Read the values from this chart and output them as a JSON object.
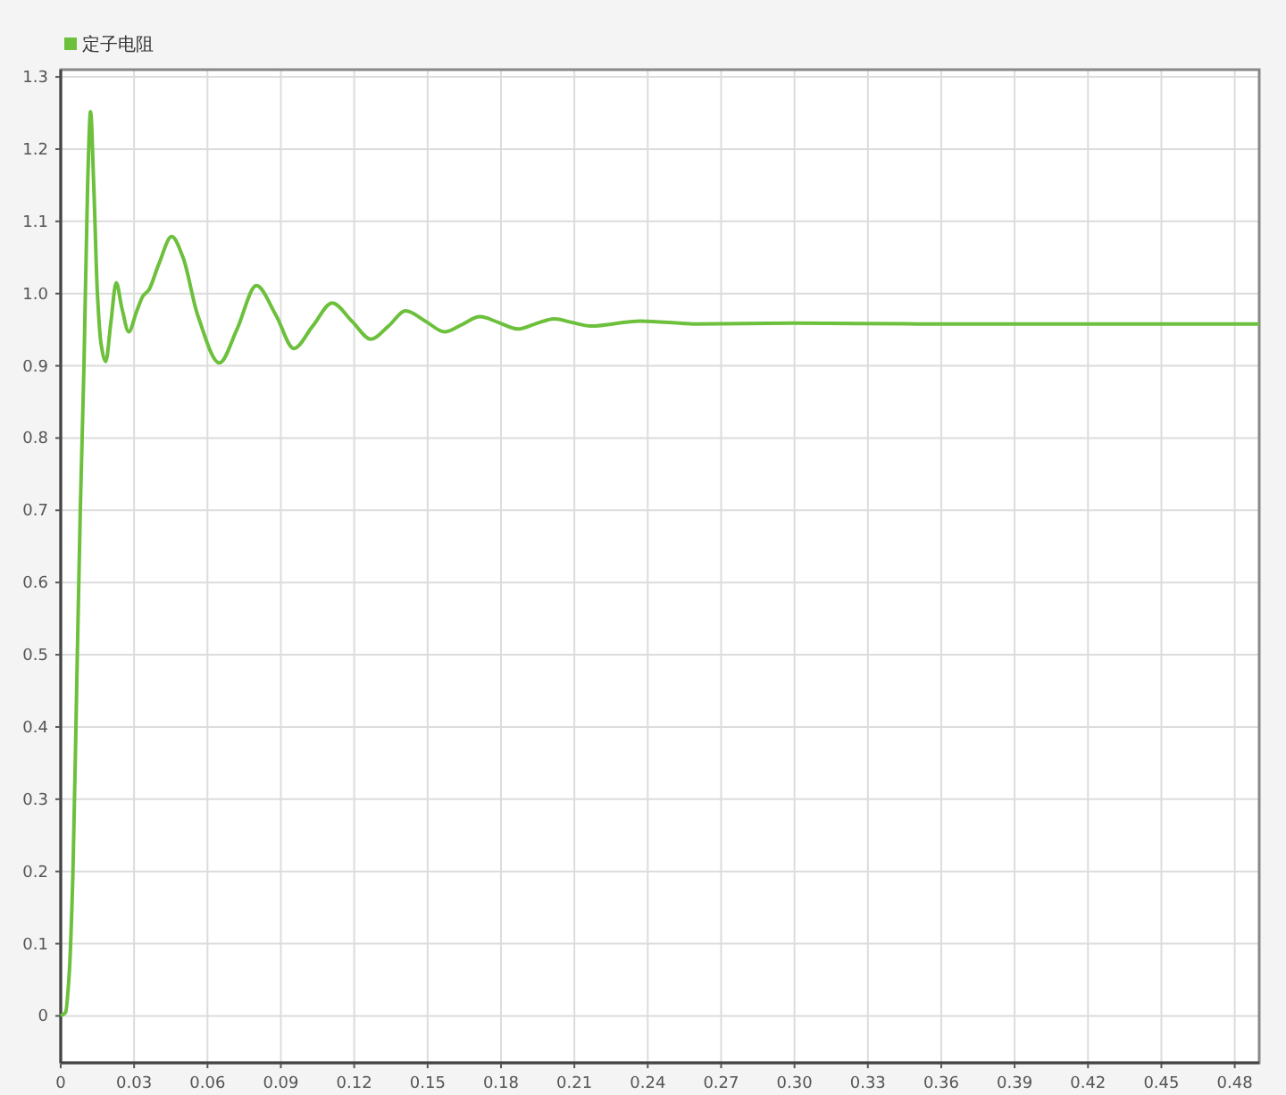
{
  "chart_data": {
    "type": "line",
    "legend": "top left",
    "grid": true,
    "marker": "none",
    "line_style": "solid",
    "xlim": [
      0,
      0.49
    ],
    "ylim": [
      -0.065,
      1.31
    ],
    "xticks": [
      0,
      0.03,
      0.06,
      0.09,
      0.12,
      0.15,
      0.18,
      0.21,
      0.24,
      0.27,
      {
        "value": 0.3,
        "label": "0.30"
      },
      0.33,
      0.36,
      0.39,
      0.42,
      0.45,
      0.48
    ],
    "yticks": [
      0,
      0.1,
      0.2,
      0.3,
      0.4,
      0.5,
      0.6,
      0.7,
      0.8,
      0.9,
      {
        "value": 1,
        "label": "1.0"
      },
      1.1,
      1.2,
      1.3
    ],
    "series": [
      {
        "name": "定子电阻",
        "color": "#6cc03c",
        "x": [
          0,
          0.002,
          0.0035,
          0.005,
          0.0065,
          0.008,
          0.0095,
          0.011,
          0.0122,
          0.0135,
          0.015,
          0.0165,
          0.0184,
          0.0205,
          0.0227,
          0.025,
          0.0278,
          0.031,
          0.0337,
          0.036,
          0.04,
          0.0454,
          0.05,
          0.056,
          0.0649,
          0.072,
          0.08,
          0.088,
          0.0953,
          0.103,
          0.111,
          0.119,
          0.1268,
          0.134,
          0.141,
          0.149,
          0.157,
          0.164,
          0.1714,
          0.179,
          0.187,
          0.194,
          0.2018,
          0.209,
          0.2166,
          0.237,
          0.26,
          0.3,
          0.35,
          0.4,
          0.45,
          0.49
        ],
        "values": [
          0,
          0.005,
          0.06,
          0.2,
          0.45,
          0.7,
          0.9,
          1.15,
          1.252,
          1.15,
          1.0,
          0.93,
          0.906,
          0.96,
          1.015,
          0.98,
          0.947,
          0.975,
          0.997,
          1.005,
          1.04,
          1.079,
          1.05,
          0.97,
          0.904,
          0.95,
          1.011,
          0.97,
          0.924,
          0.955,
          0.987,
          0.962,
          0.937,
          0.955,
          0.976,
          0.962,
          0.947,
          0.957,
          0.968,
          0.96,
          0.951,
          0.958,
          0.965,
          0.96,
          0.955,
          0.962,
          0.958,
          0.959,
          0.958,
          0.958,
          0.958,
          0.958
        ]
      }
    ]
  }
}
